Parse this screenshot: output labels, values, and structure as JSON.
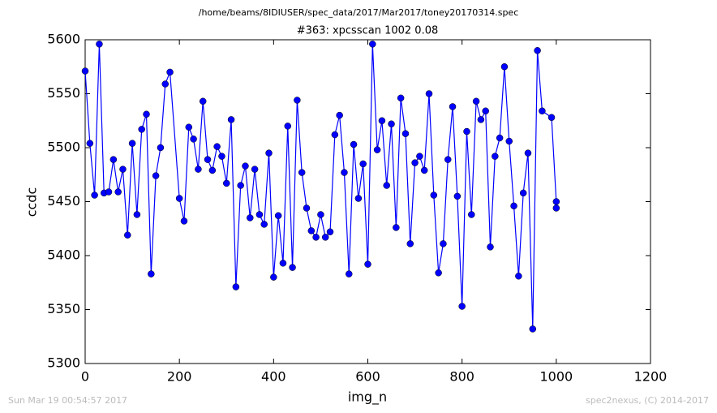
{
  "chart_data": {
    "type": "line",
    "suptitle": "/home/beams/8IDIUSER/spec_data/2017/Mar2017/toney20170314.spec",
    "title": "#363: xpcsscan 1002 0.08",
    "xlabel": "img_n",
    "ylabel": "ccdc",
    "footer_left": "Sun Mar 19 00:54:57 2017",
    "footer_right": "spec2nexus, (C) 2014-2017",
    "x": [
      0,
      10,
      20,
      30,
      40,
      50,
      60,
      70,
      80,
      90,
      100,
      110,
      120,
      130,
      140,
      150,
      160,
      170,
      180,
      200,
      210,
      220,
      230,
      240,
      250,
      260,
      270,
      280,
      290,
      300,
      310,
      320,
      330,
      340,
      350,
      360,
      370,
      380,
      390,
      400,
      410,
      420,
      430,
      440,
      450,
      460,
      470,
      480,
      490,
      500,
      510,
      520,
      530,
      540,
      550,
      560,
      570,
      580,
      590,
      600,
      610,
      620,
      630,
      640,
      650,
      660,
      670,
      680,
      690,
      700,
      710,
      720,
      730,
      740,
      750,
      760,
      770,
      780,
      790,
      800,
      810,
      820,
      830,
      840,
      850,
      860,
      870,
      880,
      890,
      900,
      910,
      920,
      930,
      940,
      950,
      960,
      970,
      990,
      1000,
      1000
    ],
    "series": [
      {
        "name": "ccdc",
        "color": "#0000ff",
        "values": [
          5571,
          5504,
          5456,
          5596,
          5458,
          5459,
          5489,
          5459,
          5480,
          5419,
          5504,
          5438,
          5517,
          5531,
          5383,
          5474,
          5500,
          5559,
          5570,
          5453,
          5432,
          5519,
          5508,
          5480,
          5543,
          5489,
          5479,
          5501,
          5492,
          5467,
          5526,
          5371,
          5465,
          5483,
          5435,
          5480,
          5438,
          5429,
          5495,
          5380,
          5437,
          5393,
          5520,
          5389,
          5544,
          5477,
          5444,
          5423,
          5417,
          5438,
          5417,
          5422,
          5512,
          5530,
          5477,
          5383,
          5503,
          5453,
          5485,
          5392,
          5596,
          5498,
          5525,
          5465,
          5522,
          5426,
          5546,
          5513,
          5411,
          5486,
          5492,
          5479,
          5550,
          5456,
          5384,
          5411,
          5489,
          5538,
          5455,
          5353,
          5515,
          5438,
          5543,
          5526,
          5534,
          5408,
          5492,
          5509,
          5575,
          5506,
          5446,
          5381,
          5458,
          5495,
          5332,
          5590,
          5534,
          5528,
          5450,
          5444
        ]
      }
    ],
    "xlim": [
      0,
      1200
    ],
    "xticks": [
      0,
      200,
      400,
      600,
      800,
      1000,
      1200
    ],
    "ylim": [
      5300,
      5600
    ],
    "yticks": [
      5300,
      5350,
      5400,
      5450,
      5500,
      5550,
      5600
    ],
    "grid": false
  }
}
